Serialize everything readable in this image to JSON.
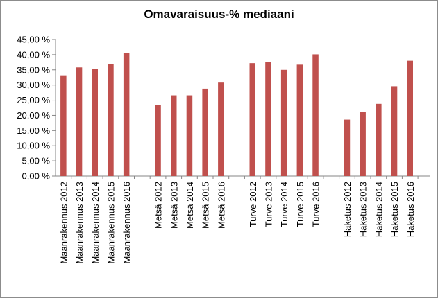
{
  "chart_data": {
    "type": "bar",
    "title": "Omavaraisuus-% mediaani",
    "xlabel": "",
    "ylabel": "",
    "ylim": [
      0,
      45
    ],
    "y_ticks": [
      "0,00 %",
      "5,00 %",
      "10,00 %",
      "15,00 %",
      "20,00 %",
      "25,00 %",
      "30,00 %",
      "35,00 %",
      "40,00 %",
      "45,00 %"
    ],
    "grid": false,
    "legend": "none",
    "bar_color": "#c0504d",
    "groups": [
      {
        "categories": [
          "Maanrakennus 2012",
          "Maanrakennus 2013",
          "Maanrakennus 2014",
          "Maanrakennus 2015",
          "Maanrakennus 2016"
        ],
        "values": [
          33.2,
          35.8,
          35.3,
          37.0,
          40.5
        ]
      },
      {
        "categories": [
          "Metsä 2012",
          "Metsä 2013",
          "Metsä 2014",
          "Metsä 2015",
          "Metsä 2016"
        ],
        "values": [
          23.3,
          26.6,
          26.6,
          28.8,
          30.8
        ]
      },
      {
        "categories": [
          "Turve 2012",
          "Turve 2013",
          "Turve 2014",
          "Turve 2015",
          "Turve 2016"
        ],
        "values": [
          37.2,
          37.6,
          35.0,
          36.7,
          40.1
        ]
      },
      {
        "categories": [
          "Haketus 2012",
          "Haketus 2013",
          "Haketus 2014",
          "Haketus 2015",
          "Haketus 2016"
        ],
        "values": [
          18.6,
          21.1,
          23.8,
          29.6,
          38.0
        ]
      }
    ]
  }
}
